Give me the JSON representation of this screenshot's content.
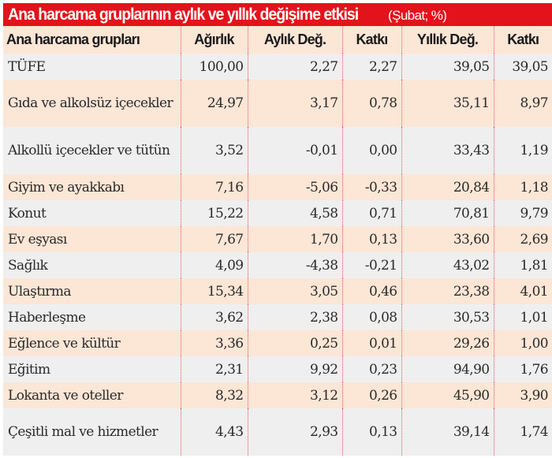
{
  "title": {
    "main": "Ana harcama gruplarının aylık ve yıllık değişime etkisi",
    "sub": "(Şubat; %)"
  },
  "colors": {
    "title_bg": "#e3131b",
    "header_bg": "#fce6d6",
    "row_gray": "#efefef",
    "row_peach": "#fce6d6",
    "separator": "#e8535a"
  },
  "headers": [
    "Ana harcama grupları",
    "Ağırlık",
    "Aylık Değ.",
    "Katkı",
    "Yıllık Değ.",
    "Katkı"
  ],
  "rows": [
    {
      "name": "TÜFE",
      "agirlik": "100,00",
      "aylik": "2,27",
      "katki_aylik": "2,27",
      "yillik": "39,05",
      "katki_yillik": "39,05"
    },
    {
      "name": "Gıda ve alkolsüz içecekler",
      "agirlik": "24,97",
      "aylik": "3,17",
      "katki_aylik": "0,78",
      "yillik": "35,11",
      "katki_yillik": "8,97"
    },
    {
      "name": "Alkollü içecekler ve tütün",
      "agirlik": "3,52",
      "aylik": "-0,01",
      "katki_aylik": "0,00",
      "yillik": "33,43",
      "katki_yillik": "1,19"
    },
    {
      "name": "Giyim ve ayakkabı",
      "agirlik": "7,16",
      "aylik": "-5,06",
      "katki_aylik": "-0,33",
      "yillik": "20,84",
      "katki_yillik": "1,18"
    },
    {
      "name": "Konut",
      "agirlik": "15,22",
      "aylik": "4,58",
      "katki_aylik": "0,71",
      "yillik": "70,81",
      "katki_yillik": "9,79"
    },
    {
      "name": "Ev eşyası",
      "agirlik": "7,67",
      "aylik": "1,70",
      "katki_aylik": "0,13",
      "yillik": "33,60",
      "katki_yillik": "2,69"
    },
    {
      "name": "Sağlık",
      "agirlik": "4,09",
      "aylik": "-4,38",
      "katki_aylik": "-0,21",
      "yillik": "43,02",
      "katki_yillik": "1,81"
    },
    {
      "name": "Ulaştırma",
      "agirlik": "15,34",
      "aylik": "3,05",
      "katki_aylik": "0,46",
      "yillik": "23,38",
      "katki_yillik": "4,01"
    },
    {
      "name": "Haberleşme",
      "agirlik": "3,62",
      "aylik": "2,38",
      "katki_aylik": "0,08",
      "yillik": "30,53",
      "katki_yillik": "1,01"
    },
    {
      "name": "Eğlence ve kültür",
      "agirlik": "3,36",
      "aylik": "0,25",
      "katki_aylik": "0,01",
      "yillik": "29,26",
      "katki_yillik": "1,00"
    },
    {
      "name": "Eğitim",
      "agirlik": "2,31",
      "aylik": "9,92",
      "katki_aylik": "0,23",
      "yillik": "94,90",
      "katki_yillik": "1,76"
    },
    {
      "name": "Lokanta ve oteller",
      "agirlik": "8,32",
      "aylik": "3,12",
      "katki_aylik": "0,26",
      "yillik": "45,90",
      "katki_yillik": "3,90"
    },
    {
      "name": "Çeşitli mal ve hizmetler",
      "agirlik": "4,43",
      "aylik": "2,93",
      "katki_aylik": "0,13",
      "yillik": "39,14",
      "katki_yillik": "1,74"
    }
  ],
  "chart_data": {
    "type": "table",
    "title": "Ana harcama gruplarının aylık ve yıllık değişime etkisi",
    "subtitle": "(Şubat; %)",
    "columns": [
      "Ana harcama grupları",
      "Ağırlık",
      "Aylık Değ.",
      "Katkı",
      "Yıllık Değ.",
      "Katkı"
    ],
    "categories": [
      "TÜFE",
      "Gıda ve alkolsüz içecekler",
      "Alkollü içecekler ve tütün",
      "Giyim ve ayakkabı",
      "Konut",
      "Ev eşyası",
      "Sağlık",
      "Ulaştırma",
      "Haberleşme",
      "Eğlence ve kültür",
      "Eğitim",
      "Lokanta ve oteller",
      "Çeşitli mal ve hizmetler"
    ],
    "series": [
      {
        "name": "Ağırlık",
        "values": [
          100.0,
          24.97,
          3.52,
          7.16,
          15.22,
          7.67,
          4.09,
          15.34,
          3.62,
          3.36,
          2.31,
          8.32,
          4.43
        ]
      },
      {
        "name": "Aylık Değ.",
        "values": [
          2.27,
          3.17,
          -0.01,
          -5.06,
          4.58,
          1.7,
          -4.38,
          3.05,
          2.38,
          0.25,
          9.92,
          3.12,
          2.93
        ]
      },
      {
        "name": "Katkı (aylık)",
        "values": [
          2.27,
          0.78,
          0.0,
          -0.33,
          0.71,
          0.13,
          -0.21,
          0.46,
          0.08,
          0.01,
          0.23,
          0.26,
          0.13
        ]
      },
      {
        "name": "Yıllık Değ.",
        "values": [
          39.05,
          35.11,
          33.43,
          20.84,
          70.81,
          33.6,
          43.02,
          23.38,
          30.53,
          29.26,
          94.9,
          45.9,
          39.14
        ]
      },
      {
        "name": "Katkı (yıllık)",
        "values": [
          39.05,
          8.97,
          1.19,
          1.18,
          9.79,
          2.69,
          1.81,
          4.01,
          1.01,
          1.0,
          1.76,
          3.9,
          1.74
        ]
      }
    ]
  }
}
